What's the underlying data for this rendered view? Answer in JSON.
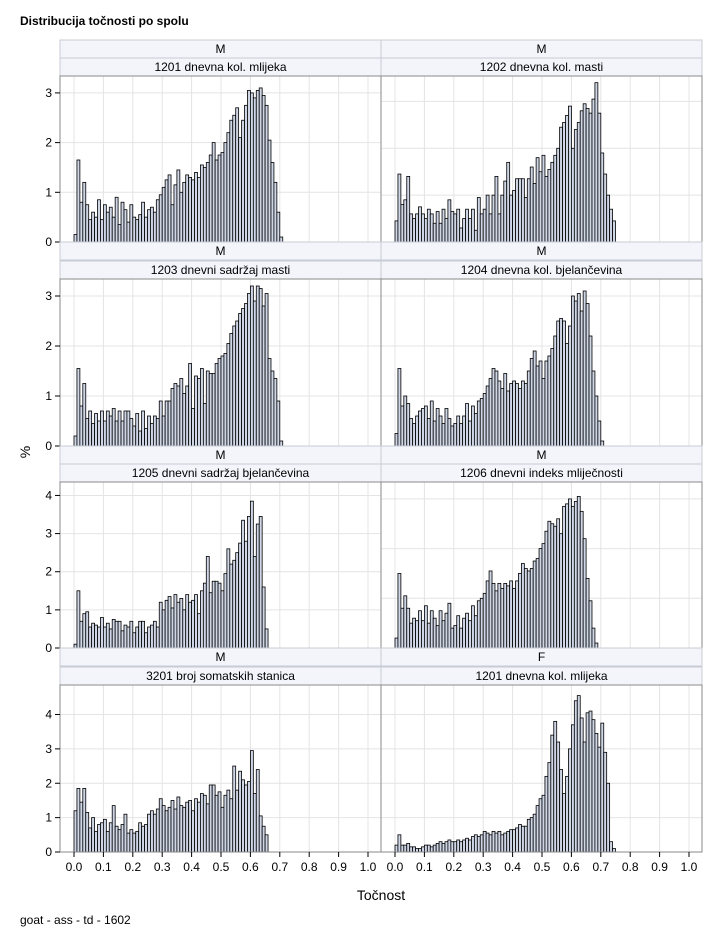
{
  "title": "Distribucija točnosti po spolu",
  "footnote": "goat - ass - td - 1602",
  "chart_data": {
    "type": "bar",
    "layout": "panel grid 2 columns x 4 rows, histograms",
    "xlabel": "Točnost",
    "ylabel": "%",
    "x_ticks": [
      "0.0",
      "0.1",
      "0.2",
      "0.3",
      "0.4",
      "0.5",
      "0.6",
      "0.7",
      "0.8",
      "0.9",
      "1.0"
    ],
    "bin_width": 0.01,
    "bin_start": 0.0,
    "grid": true,
    "bar_color": "#cfd6e6",
    "bar_edge": "#000000",
    "panels": [
      {
        "sex": "M",
        "trait": "1201 dnevna kol. mlijeka",
        "ylim": [
          0,
          3.3
        ],
        "yticks": [
          "0",
          "1",
          "2",
          "3"
        ],
        "values": [
          0.15,
          1.65,
          0.8,
          1.2,
          0.75,
          0.45,
          0.6,
          0.5,
          0.85,
          0.45,
          0.75,
          0.6,
          0.7,
          0.5,
          0.9,
          0.35,
          0.8,
          0.65,
          0.4,
          0.75,
          0.5,
          0.45,
          0.55,
          0.8,
          0.5,
          0.65,
          0.7,
          0.6,
          0.85,
          0.95,
          1.1,
          1.25,
          1.35,
          0.75,
          1.15,
          1.45,
          1.0,
          1.2,
          1.35,
          1.3,
          1.25,
          1.4,
          1.3,
          1.55,
          1.5,
          1.6,
          1.75,
          2.0,
          1.65,
          1.75,
          1.8,
          2.0,
          2.2,
          2.45,
          2.55,
          2.7,
          2.1,
          2.45,
          2.75,
          3.05,
          3.0,
          2.9,
          3.05,
          3.1,
          2.95,
          2.75,
          2.05,
          1.6,
          1.2,
          0.6,
          0.1,
          0,
          0,
          0,
          0,
          0,
          0,
          0,
          0,
          0,
          0,
          0,
          0,
          0,
          0,
          0,
          0,
          0,
          0,
          0,
          0,
          0,
          0,
          0,
          0,
          0,
          0,
          0,
          0,
          0
        ]
      },
      {
        "sex": "M",
        "trait": "1202 dnevna kol. masti",
        "ylim": [
          0,
          3.5
        ],
        "yticks": [
          "0",
          "1",
          "2",
          "3"
        ],
        "values": [
          0.45,
          1.45,
          0.8,
          0.9,
          1.4,
          0.6,
          0.5,
          0.6,
          0.75,
          0.6,
          0.5,
          0.7,
          0.6,
          0.4,
          0.65,
          0.4,
          0.7,
          0.5,
          0.9,
          0.65,
          0.6,
          0.7,
          0.3,
          0.5,
          0.7,
          0.5,
          0.7,
          0.25,
          0.95,
          0.6,
          0.7,
          1.0,
          0.6,
          1.0,
          1.4,
          0.6,
          1.0,
          1.3,
          1.7,
          1.0,
          1.1,
          1.35,
          1.35,
          1.35,
          0.95,
          1.35,
          1.6,
          1.25,
          1.8,
          1.5,
          1.85,
          1.4,
          1.55,
          1.7,
          1.85,
          2.0,
          2.45,
          2.55,
          2.7,
          2.9,
          2.0,
          2.4,
          2.55,
          2.8,
          2.95,
          2.85,
          2.75,
          3.05,
          3.4,
          2.75,
          1.9,
          1.45,
          1.0,
          0.7,
          0.45,
          0,
          0,
          0,
          0,
          0,
          0,
          0,
          0,
          0,
          0,
          0,
          0,
          0,
          0,
          0,
          0,
          0,
          0,
          0,
          0,
          0,
          0,
          0,
          0,
          0
        ]
      },
      {
        "sex": "M",
        "trait": "1203 dnevni sadržaj masti",
        "ylim": [
          0,
          3.3
        ],
        "yticks": [
          "0",
          "1",
          "2",
          "3"
        ],
        "values": [
          0.2,
          1.55,
          0.8,
          1.25,
          0.55,
          0.7,
          0.45,
          0.65,
          0.5,
          0.7,
          0.5,
          0.7,
          0.6,
          0.75,
          0.5,
          0.7,
          0.5,
          0.7,
          0.7,
          0.55,
          0.4,
          0.65,
          0.3,
          0.7,
          0.35,
          0.6,
          0.45,
          0.6,
          0.55,
          0.9,
          0.6,
          0.9,
          0.9,
          1.15,
          1.25,
          1.2,
          1.35,
          1.05,
          1.2,
          1.65,
          0.75,
          1.4,
          1.35,
          1.55,
          0.85,
          1.5,
          1.45,
          1.45,
          1.65,
          1.75,
          1.8,
          1.85,
          2.05,
          2.25,
          2.4,
          2.5,
          2.65,
          2.75,
          2.85,
          3.05,
          3.2,
          2.9,
          3.2,
          3.15,
          2.8,
          3.05,
          1.75,
          1.5,
          1.35,
          0.9,
          0.1,
          0,
          0,
          0,
          0,
          0,
          0,
          0,
          0,
          0,
          0,
          0,
          0,
          0,
          0,
          0,
          0,
          0,
          0,
          0,
          0,
          0,
          0,
          0,
          0,
          0,
          0,
          0,
          0,
          0
        ]
      },
      {
        "sex": "M",
        "trait": "1204 dnevna kol. bjelančevina",
        "ylim": [
          0,
          3.3
        ],
        "yticks": [
          "0",
          "1",
          "2",
          "3"
        ],
        "values": [
          0.25,
          1.55,
          0.8,
          1.0,
          0.85,
          0.55,
          0.45,
          0.6,
          0.7,
          0.75,
          0.8,
          0.55,
          0.9,
          0.5,
          0.75,
          0.6,
          0.45,
          0.75,
          0.55,
          0.4,
          0.45,
          0.6,
          0.45,
          0.6,
          0.85,
          0.5,
          0.8,
          0.65,
          0.9,
          0.95,
          1.05,
          1.2,
          1.35,
          1.55,
          1.5,
          1.3,
          1.15,
          1.45,
          1.1,
          1.25,
          1.3,
          1.25,
          1.15,
          1.3,
          1.25,
          1.5,
          1.75,
          1.9,
          1.6,
          1.7,
          1.35,
          1.7,
          1.8,
          1.95,
          2.2,
          2.5,
          2.55,
          2.5,
          2.05,
          2.4,
          3.0,
          2.9,
          3.05,
          2.7,
          3.1,
          2.85,
          2.2,
          1.5,
          1.0,
          0.5,
          0.1,
          0,
          0,
          0,
          0,
          0,
          0,
          0,
          0,
          0,
          0,
          0,
          0,
          0,
          0,
          0,
          0,
          0,
          0,
          0,
          0,
          0,
          0,
          0,
          0,
          0,
          0,
          0,
          0,
          0
        ]
      },
      {
        "sex": "M",
        "trait": "1205 dnevni sadržaj bjelančevina",
        "ylim": [
          0,
          4.3
        ],
        "yticks": [
          "0",
          "1",
          "2",
          "3",
          "4"
        ],
        "values": [
          0.1,
          1.5,
          0.7,
          0.9,
          0.95,
          0.55,
          0.65,
          0.6,
          0.55,
          0.8,
          0.55,
          0.65,
          0.5,
          0.75,
          0.7,
          0.7,
          0.45,
          0.6,
          0.55,
          0.7,
          0.4,
          0.55,
          0.7,
          0.7,
          0.4,
          0.55,
          0.6,
          0.7,
          0.55,
          1.2,
          1.0,
          1.25,
          1.35,
          1.05,
          1.4,
          1.2,
          1.3,
          1.0,
          1.4,
          1.2,
          1.25,
          1.4,
          0.9,
          1.5,
          1.7,
          2.4,
          1.45,
          1.75,
          1.75,
          1.7,
          1.5,
          1.95,
          2.6,
          2.2,
          2.3,
          2.5,
          2.75,
          3.35,
          2.8,
          3.45,
          3.85,
          2.4,
          3.25,
          3.45,
          1.6,
          0.5,
          0,
          0,
          0,
          0,
          0,
          0,
          0,
          0,
          0,
          0,
          0,
          0,
          0,
          0,
          0,
          0,
          0,
          0,
          0,
          0,
          0,
          0,
          0,
          0,
          0,
          0,
          0,
          0,
          0,
          0,
          0,
          0,
          0,
          0
        ]
      },
      {
        "sex": "M",
        "trait": "1206 dnevni indeks mliječnosti",
        "ylim": [
          0,
          3.3
        ],
        "yticks": [
          "0",
          "1",
          "2",
          "3"
        ],
        "values": [
          0.2,
          1.5,
          0.8,
          1.05,
          0.8,
          0.5,
          0.6,
          0.55,
          0.75,
          0.55,
          0.85,
          0.5,
          0.75,
          0.6,
          0.45,
          0.75,
          0.55,
          0.7,
          0.9,
          0.4,
          0.45,
          0.65,
          0.4,
          0.6,
          0.7,
          0.55,
          0.85,
          0.65,
          0.95,
          1.0,
          1.1,
          1.35,
          1.55,
          1.3,
          1.15,
          1.3,
          1.2,
          1.3,
          1.25,
          1.35,
          1.2,
          1.35,
          1.5,
          1.7,
          1.6,
          1.55,
          1.6,
          1.75,
          1.8,
          2.0,
          2.1,
          2.35,
          2.55,
          2.5,
          2.45,
          2.6,
          2.3,
          2.85,
          2.9,
          3.0,
          2.85,
          2.95,
          3.05,
          2.75,
          2.2,
          1.4,
          0.95,
          0.4,
          0.1,
          0,
          0,
          0,
          0,
          0,
          0,
          0,
          0,
          0,
          0,
          0,
          0,
          0,
          0,
          0,
          0,
          0,
          0,
          0,
          0,
          0,
          0,
          0,
          0,
          0,
          0,
          0,
          0,
          0,
          0,
          0
        ]
      },
      {
        "sex": "M",
        "trait": "3201 broj somatskih stanica",
        "ylim": [
          0,
          4.8
        ],
        "yticks": [
          "0",
          "1",
          "2",
          "3",
          "4"
        ],
        "values": [
          1.2,
          1.85,
          1.45,
          1.85,
          1.15,
          0.7,
          1.0,
          0.6,
          0.8,
          0.85,
          0.95,
          0.6,
          0.85,
          1.35,
          0.75,
          0.65,
          0.8,
          1.1,
          0.55,
          0.65,
          0.55,
          0.6,
          0.85,
          0.75,
          0.8,
          1.1,
          1.2,
          1.1,
          1.25,
          1.55,
          1.35,
          1.2,
          1.3,
          1.5,
          1.25,
          1.6,
          1.35,
          1.3,
          1.45,
          1.5,
          1.2,
          1.55,
          1.45,
          1.7,
          1.65,
          1.4,
          1.95,
          1.95,
          1.65,
          1.75,
          1.3,
          1.65,
          1.8,
          1.55,
          2.5,
          1.8,
          2.35,
          2.1,
          1.95,
          2.05,
          2.95,
          1.7,
          2.4,
          1.05,
          0.75,
          0.5,
          0,
          0,
          0,
          0,
          0,
          0,
          0,
          0,
          0,
          0,
          0,
          0,
          0,
          0,
          0,
          0,
          0,
          0,
          0,
          0,
          0,
          0,
          0,
          0,
          0,
          0,
          0,
          0,
          0,
          0,
          0,
          0,
          0,
          0
        ]
      },
      {
        "sex": "F",
        "trait": "1201 dnevna kol. mlijeka",
        "ylim": [
          0,
          4.8
        ],
        "yticks": [
          "0",
          "1",
          "2",
          "3",
          "4"
        ],
        "values": [
          0.2,
          0.5,
          0.2,
          0.2,
          0.25,
          0.15,
          0.15,
          0.1,
          0.1,
          0.15,
          0.2,
          0.2,
          0.15,
          0.2,
          0.25,
          0.3,
          0.25,
          0.3,
          0.35,
          0.3,
          0.3,
          0.35,
          0.3,
          0.35,
          0.4,
          0.35,
          0.45,
          0.5,
          0.45,
          0.5,
          0.6,
          0.55,
          0.5,
          0.6,
          0.55,
          0.6,
          0.5,
          0.55,
          0.6,
          0.65,
          0.65,
          0.7,
          0.8,
          0.75,
          0.75,
          0.95,
          1.0,
          1.1,
          1.35,
          1.55,
          1.65,
          2.2,
          2.6,
          3.4,
          3.8,
          3.2,
          2.4,
          1.7,
          2.2,
          3.0,
          3.7,
          4.4,
          4.55,
          3.9,
          3.2,
          4.05,
          4.1,
          3.85,
          3.45,
          3.05,
          3.75,
          2.9,
          2.0,
          0.3,
          0.1,
          0,
          0,
          0,
          0,
          0,
          0,
          0,
          0,
          0,
          0,
          0,
          0,
          0,
          0,
          0,
          0,
          0,
          0,
          0,
          0,
          0,
          0,
          0,
          0,
          0
        ]
      }
    ]
  }
}
